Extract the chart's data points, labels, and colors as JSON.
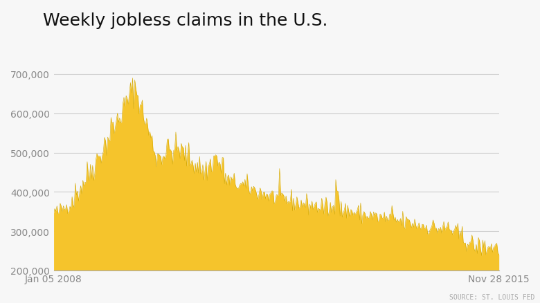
{
  "title": "Weekly jobless claims in the U.S.",
  "source_text": "SOURCE: ST. LOUIS FED",
  "x_start_label": "Jan 05 2008",
  "x_end_label": "Nov 28 2015",
  "fill_color": "#F5C42C",
  "background_color": "#F7F7F7",
  "plot_bg_color": "#F7F7F7",
  "grid_color": "#CCCCCC",
  "ylim": [
    200000,
    740000
  ],
  "yticks": [
    200000,
    300000,
    400000,
    500000,
    600000,
    700000
  ],
  "title_fontsize": 18,
  "tick_fontsize": 10,
  "source_fontsize": 7
}
